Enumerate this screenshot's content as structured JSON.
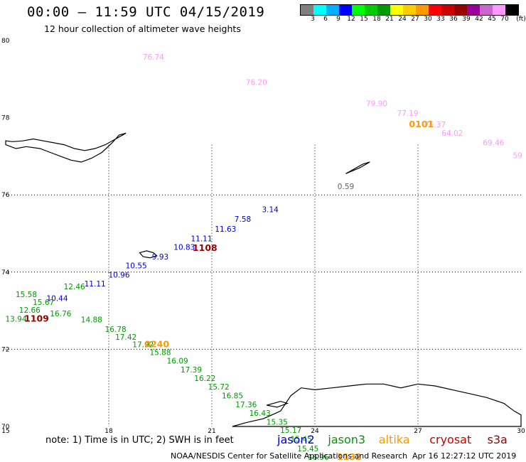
{
  "header": {
    "title": "00:00 – 11:59 UTC 04/15/2019",
    "subtitle": "12 hour collection of altimeter wave heights"
  },
  "colorbar": {
    "colors": [
      "#808080",
      "#00ffff",
      "#00b0ff",
      "#0000ff",
      "#00ff00",
      "#00cc00",
      "#009900",
      "#ffff00",
      "#ffcc00",
      "#ff9900",
      "#ff0000",
      "#cc0000",
      "#990000",
      "#990099",
      "#cc66cc",
      "#ff99ff",
      "#000000"
    ],
    "labels": [
      "3",
      "6",
      "9",
      "12",
      "15",
      "18",
      "21",
      "24",
      "27",
      "30",
      "33",
      "36",
      "39",
      "42",
      "45",
      "70"
    ],
    "unit": "(ft)"
  },
  "map": {
    "lon_range": [
      15,
      30
    ],
    "lat_range": [
      70,
      80
    ],
    "lon_ticks": [
      "15",
      "18",
      "21",
      "24",
      "27",
      "30"
    ],
    "lat_ticks": [
      "80",
      "78",
      "76",
      "74",
      "72",
      "70"
    ],
    "grid": true,
    "gridline_lats": [
      76,
      74,
      72
    ],
    "gridline_lons": [
      18,
      21,
      24,
      27
    ],
    "land_polygons": [
      {
        "name": "svalbard",
        "points": [
          [
            15,
            77.3
          ],
          [
            15.3,
            77.2
          ],
          [
            15.6,
            77.25
          ],
          [
            16,
            77.2
          ],
          [
            16.3,
            77.1
          ],
          [
            16.6,
            77.0
          ],
          [
            16.9,
            76.9
          ],
          [
            17.2,
            76.85
          ],
          [
            17.5,
            76.95
          ],
          [
            17.8,
            77.1
          ],
          [
            18.1,
            77.35
          ],
          [
            18.3,
            77.55
          ],
          [
            18.5,
            77.6
          ],
          [
            18.2,
            77.45
          ],
          [
            17.9,
            77.3
          ],
          [
            17.6,
            77.2
          ],
          [
            17.3,
            77.15
          ],
          [
            17.0,
            77.2
          ],
          [
            16.7,
            77.3
          ],
          [
            16.4,
            77.35
          ],
          [
            16.1,
            77.4
          ],
          [
            15.8,
            77.45
          ],
          [
            15.5,
            77.4
          ],
          [
            15.2,
            77.38
          ],
          [
            15,
            77.4
          ]
        ]
      },
      {
        "name": "hopen",
        "points": [
          [
            24.9,
            76.55
          ],
          [
            25.3,
            76.7
          ],
          [
            25.6,
            76.85
          ],
          [
            25.4,
            76.8
          ],
          [
            25.0,
            76.6
          ]
        ]
      },
      {
        "name": "bear-island",
        "points": [
          [
            18.9,
            74.5
          ],
          [
            19.1,
            74.55
          ],
          [
            19.3,
            74.5
          ],
          [
            19.4,
            74.42
          ],
          [
            19.2,
            74.37
          ],
          [
            19.0,
            74.4
          ]
        ]
      },
      {
        "name": "norway",
        "points": [
          [
            21.6,
            70.0
          ],
          [
            22,
            70.1
          ],
          [
            22.5,
            70.2
          ],
          [
            23,
            70.4
          ],
          [
            23.3,
            70.8
          ],
          [
            23.6,
            71.0
          ],
          [
            24,
            70.95
          ],
          [
            24.5,
            71.0
          ],
          [
            25,
            71.05
          ],
          [
            25.5,
            71.1
          ],
          [
            26,
            71.1
          ],
          [
            26.5,
            71.0
          ],
          [
            27,
            71.1
          ],
          [
            27.5,
            71.05
          ],
          [
            28,
            70.95
          ],
          [
            28.5,
            70.85
          ],
          [
            29,
            70.75
          ],
          [
            29.5,
            70.6
          ],
          [
            29.8,
            70.4
          ],
          [
            30,
            70.3
          ],
          [
            30,
            70.0
          ]
        ]
      },
      {
        "name": "soroya",
        "points": [
          [
            22.6,
            70.55
          ],
          [
            23.0,
            70.65
          ],
          [
            23.2,
            70.6
          ],
          [
            22.9,
            70.5
          ]
        ]
      }
    ]
  },
  "tracks": [
    {
      "name": "cryosat",
      "color": "#ff99ff",
      "labels": [
        {
          "lon": 19.3,
          "lat": 79.5,
          "text": "76.74"
        },
        {
          "lon": 22.3,
          "lat": 78.85,
          "text": "76.20"
        },
        {
          "lon": 25.8,
          "lat": 78.3,
          "text": "79.90"
        },
        {
          "lon": 26.7,
          "lat": 78.05,
          "text": "77.19"
        },
        {
          "lon": 27.5,
          "lat": 77.75,
          "text": "76.37"
        },
        {
          "lon": 28.0,
          "lat": 77.53,
          "text": "64.02"
        },
        {
          "lon": 29.2,
          "lat": 77.28,
          "text": "69.46"
        },
        {
          "lon": 29.9,
          "lat": 76.95,
          "text": "59"
        }
      ]
    },
    {
      "name": "unlabeled-gray",
      "color": "#606060",
      "labels": [
        {
          "lon": 24.9,
          "lat": 76.15,
          "text": "0.59"
        }
      ]
    },
    {
      "name": "jason2-track",
      "color": "#0000cc",
      "labels": [
        {
          "lon": 22.7,
          "lat": 75.55,
          "text": "3.14"
        },
        {
          "lon": 21.9,
          "lat": 75.3,
          "text": "7.58"
        },
        {
          "lon": 21.4,
          "lat": 75.05,
          "text": "11.63"
        },
        {
          "lon": 20.7,
          "lat": 74.8,
          "text": "11.11"
        },
        {
          "lon": 20.2,
          "lat": 74.58,
          "text": "10.83"
        },
        {
          "lon": 19.5,
          "lat": 74.33,
          "text": "9.93"
        },
        {
          "lon": 18.8,
          "lat": 74.1,
          "text": "10.55"
        },
        {
          "lon": 18.3,
          "lat": 73.86,
          "text": "10.96"
        },
        {
          "lon": 17.6,
          "lat": 73.63,
          "text": "11.11"
        },
        {
          "lon": 16.5,
          "lat": 73.25,
          "text": "10.44"
        }
      ]
    },
    {
      "name": "jason3-track",
      "color": "#009900",
      "labels": [
        {
          "lon": 15.6,
          "lat": 73.35,
          "text": "15.58"
        },
        {
          "lon": 16.1,
          "lat": 73.15,
          "text": "15.67"
        },
        {
          "lon": 15.7,
          "lat": 72.95,
          "text": "12.66"
        },
        {
          "lon": 16.6,
          "lat": 72.85,
          "text": "16.76"
        },
        {
          "lon": 17.0,
          "lat": 73.55,
          "text": "12.46"
        },
        {
          "lon": 15.3,
          "lat": 72.72,
          "text": "13.94"
        },
        {
          "lon": 17.5,
          "lat": 72.7,
          "text": "14.88"
        },
        {
          "lon": 18.2,
          "lat": 72.45,
          "text": "16.78"
        },
        {
          "lon": 18.5,
          "lat": 72.25,
          "text": "17.42"
        },
        {
          "lon": 19.0,
          "lat": 72.05,
          "text": "17.92"
        },
        {
          "lon": 19.5,
          "lat": 71.85,
          "text": "15.88"
        },
        {
          "lon": 20.0,
          "lat": 71.63,
          "text": "16.09"
        },
        {
          "lon": 20.4,
          "lat": 71.4,
          "text": "17.39"
        },
        {
          "lon": 20.8,
          "lat": 71.18,
          "text": "16.22"
        },
        {
          "lon": 21.2,
          "lat": 70.96,
          "text": "15.72"
        },
        {
          "lon": 21.6,
          "lat": 70.73,
          "text": "16.85"
        },
        {
          "lon": 22.0,
          "lat": 70.5,
          "text": "17.36"
        },
        {
          "lon": 22.4,
          "lat": 70.28,
          "text": "16.43"
        },
        {
          "lon": 22.9,
          "lat": 70.05,
          "text": "15.35"
        },
        {
          "lon": 23.3,
          "lat": 69.83,
          "text": "15.17"
        },
        {
          "lon": 23.6,
          "lat": 69.6,
          "text": "15.45"
        },
        {
          "lon": 23.8,
          "lat": 69.36,
          "text": "15.45"
        },
        {
          "lon": 24.1,
          "lat": 69.13,
          "text": "16.96"
        }
      ]
    }
  ],
  "pass_ids": [
    {
      "lon": 27.1,
      "lat": 77.75,
      "text": "0101",
      "color": "#ff9900"
    },
    {
      "lon": 20.8,
      "lat": 74.55,
      "text": "1108",
      "color": "#990000"
    },
    {
      "lon": 15.9,
      "lat": 72.72,
      "text": "1109",
      "color": "#990000"
    },
    {
      "lon": 19.4,
      "lat": 72.05,
      "text": "0240",
      "color": "#ff9900"
    },
    {
      "lon": 25.0,
      "lat": 69.13,
      "text": "1132",
      "color": "#ff9900"
    }
  ],
  "footer": {
    "note": "note:  1) Time is in UTC;  2) SWH is in feet",
    "satellites": [
      {
        "name": "jason2",
        "color": "#0000cc"
      },
      {
        "name": "jason3",
        "color": "#009900"
      },
      {
        "name": "altika",
        "color": "#ff9900"
      },
      {
        "name": "cryosat",
        "color": "#cc0000"
      },
      {
        "name": "s3a",
        "color": "#990000"
      }
    ],
    "credit": "NOAA/NESDIS Center for Satellite Applications and Research",
    "timestamp": "Apr 16 12:27:12 UTC 2019"
  }
}
